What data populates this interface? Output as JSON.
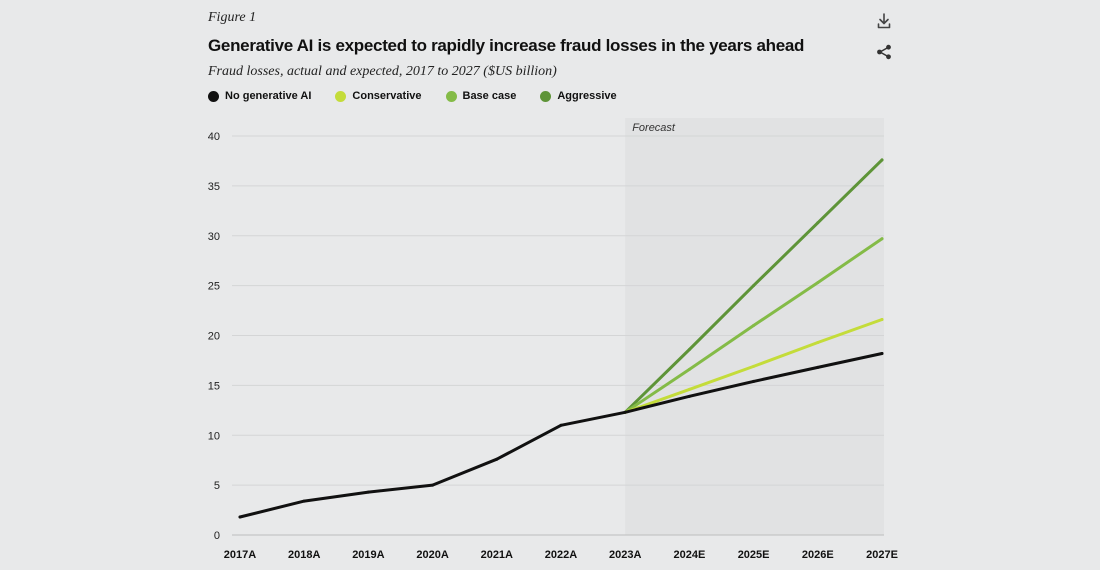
{
  "figure_label": "Figure 1",
  "icons": {
    "download": "download-icon",
    "share": "share-icon"
  },
  "chart_data": {
    "type": "line",
    "title": "Generative AI is expected to rapidly increase fraud losses in the years ahead",
    "subtitle": "Fraud losses, actual and expected, 2017 to 2027 ($US billion)",
    "xlabel": "",
    "ylabel": "",
    "categories": [
      "2017A",
      "2018A",
      "2019A",
      "2020A",
      "2021A",
      "2022A",
      "2023A",
      "2024E",
      "2025E",
      "2026E",
      "2027E"
    ],
    "ylim": [
      0,
      40
    ],
    "yticks": [
      0,
      5,
      10,
      15,
      20,
      25,
      30,
      35,
      40
    ],
    "grid": true,
    "forecast": {
      "label": "Forecast",
      "start": "2023A",
      "end": "2027E",
      "color": "#e1e2e3"
    },
    "series": [
      {
        "name": "Aggressive",
        "color": "#5e9438",
        "values": [
          null,
          null,
          null,
          null,
          null,
          null,
          12.3,
          18.6,
          25.0,
          31.3,
          37.6
        ]
      },
      {
        "name": "Base case",
        "color": "#84bb47",
        "values": [
          null,
          null,
          null,
          null,
          null,
          null,
          12.3,
          16.6,
          21.0,
          25.3,
          29.7
        ]
      },
      {
        "name": "Conservative",
        "color": "#c4dc3a",
        "values": [
          null,
          null,
          null,
          null,
          null,
          null,
          12.3,
          14.6,
          16.9,
          19.3,
          21.6
        ]
      },
      {
        "name": "No generative AI",
        "color": "#111111",
        "values": [
          1.8,
          3.4,
          4.3,
          5.0,
          7.6,
          11.0,
          12.3,
          13.9,
          15.4,
          16.8,
          18.2
        ]
      }
    ],
    "legend_order": [
      "No generative AI",
      "Conservative",
      "Base case",
      "Aggressive"
    ]
  }
}
